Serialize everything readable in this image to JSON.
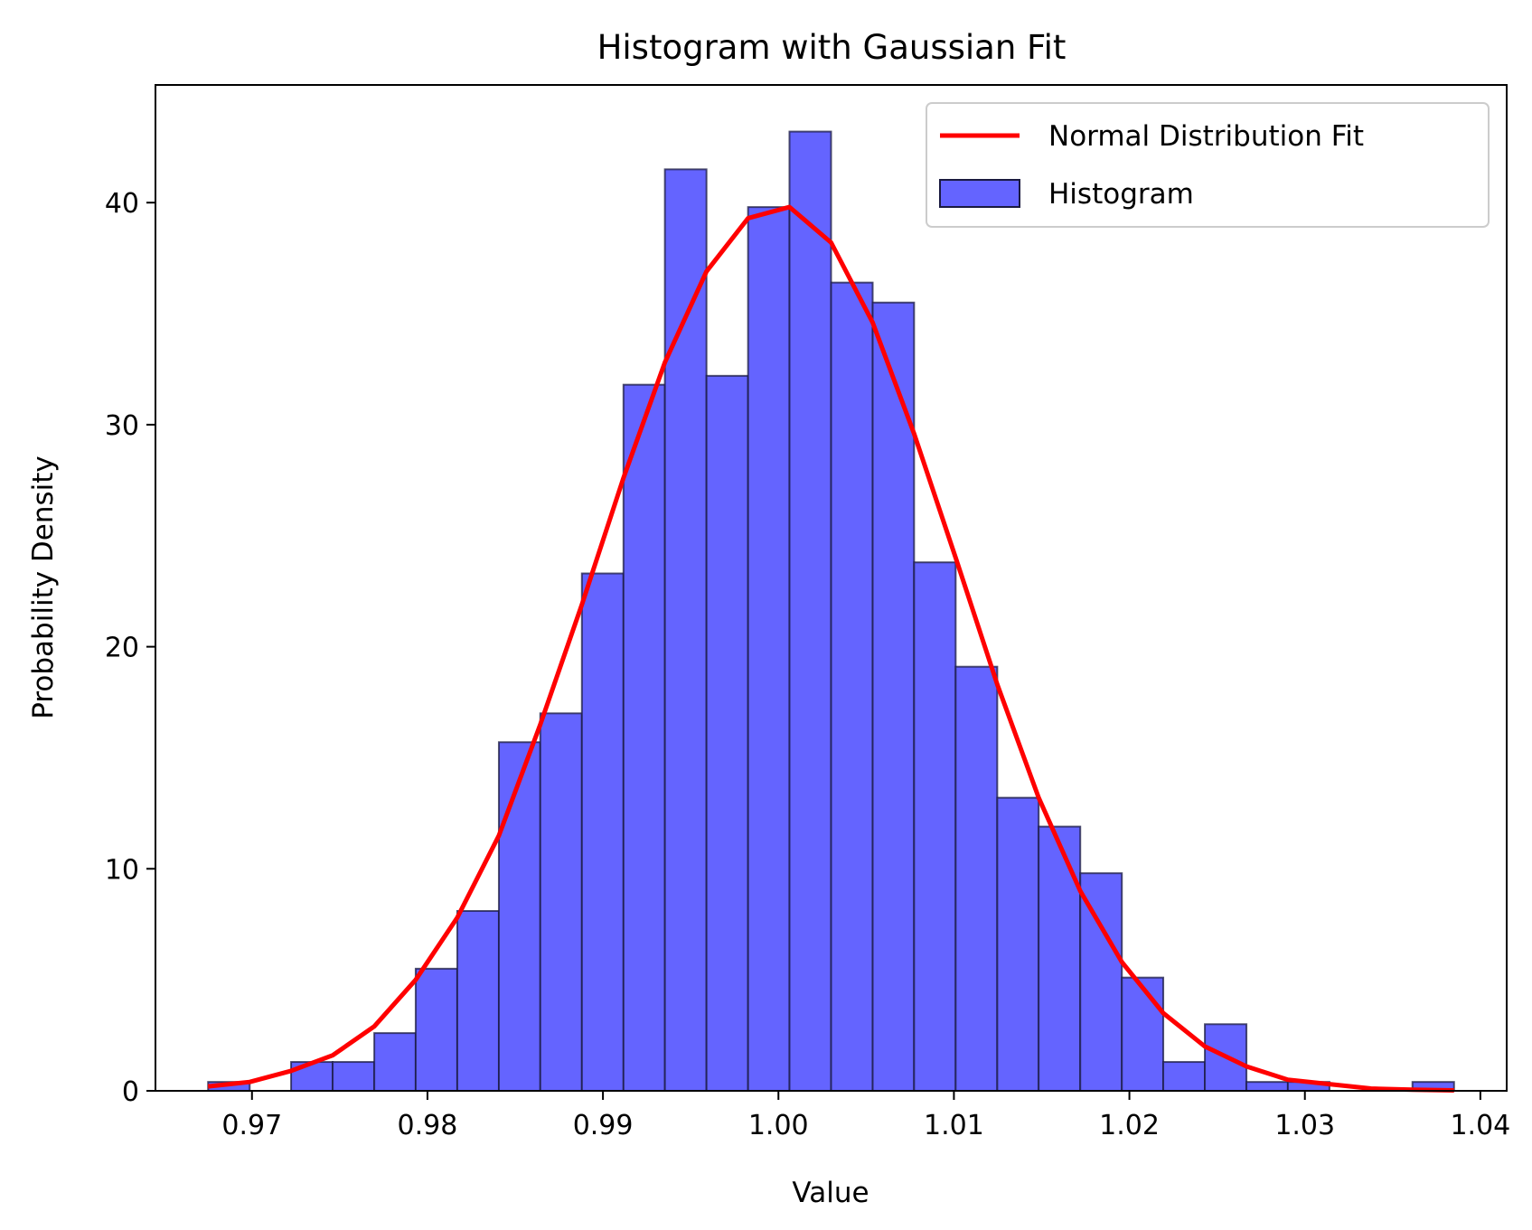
{
  "chart_data": {
    "type": "bar",
    "title": "Histogram with Gaussian Fit",
    "xlabel": "Value",
    "ylabel": "Probability Density",
    "xlim": [
      0.9645,
      1.0415
    ],
    "ylim": [
      0,
      45.3
    ],
    "xticks": [
      0.97,
      0.98,
      0.99,
      1.0,
      1.01,
      1.02,
      1.03,
      1.04
    ],
    "xtick_labels": [
      "0.97",
      "0.98",
      "0.99",
      "1.00",
      "1.01",
      "1.02",
      "1.03",
      "1.04"
    ],
    "yticks": [
      0,
      10,
      20,
      30,
      40
    ],
    "ytick_labels": [
      "0",
      "10",
      "20",
      "30",
      "40"
    ],
    "grid": false,
    "legend_position": "top-right",
    "colors": {
      "bars": "#6464ff",
      "bar_edge": "#1a1a40",
      "fit_line": "#ff0000"
    },
    "series": [
      {
        "name": "Histogram",
        "type": "histogram",
        "bin_edges": [
          0.9675,
          0.96987,
          0.97223,
          0.9746,
          0.97697,
          0.97933,
          0.9817,
          0.98407,
          0.98643,
          0.9888,
          0.99117,
          0.99353,
          0.9959,
          0.99827,
          1.00063,
          1.003,
          1.00537,
          1.00773,
          1.0101,
          1.01247,
          1.01483,
          1.0172,
          1.01957,
          1.02193,
          1.0243,
          1.02667,
          1.02903,
          1.0314,
          1.03377,
          1.03613,
          1.0385
        ],
        "values": [
          0.4,
          0,
          1.3,
          1.3,
          2.6,
          5.5,
          8.1,
          15.7,
          17.0,
          23.3,
          31.8,
          41.5,
          32.2,
          39.8,
          43.2,
          36.4,
          35.5,
          23.8,
          19.1,
          13.2,
          11.9,
          9.8,
          5.1,
          1.3,
          3.0,
          0.4,
          0.4,
          0,
          0,
          0.4
        ]
      },
      {
        "name": "Normal Distribution Fit",
        "type": "line",
        "x": [
          0.9675,
          0.96987,
          0.97223,
          0.9746,
          0.97697,
          0.97933,
          0.9817,
          0.98407,
          0.98643,
          0.9888,
          0.99117,
          0.99353,
          0.9959,
          0.99827,
          1.00063,
          1.003,
          1.00537,
          1.00773,
          1.0101,
          1.01247,
          1.01483,
          1.0172,
          1.01957,
          1.02193,
          1.0243,
          1.02667,
          1.02903,
          1.0314,
          1.03377,
          1.03613,
          1.0385
        ],
        "y": [
          0.2,
          0.4,
          0.9,
          1.6,
          2.9,
          5.0,
          7.8,
          11.5,
          16.5,
          21.9,
          27.6,
          32.8,
          36.9,
          39.3,
          39.8,
          38.2,
          34.6,
          29.6,
          24.0,
          18.3,
          13.2,
          9.0,
          5.8,
          3.5,
          2.0,
          1.1,
          0.5,
          0.3,
          0.1,
          0.05,
          0.02
        ]
      }
    ]
  }
}
